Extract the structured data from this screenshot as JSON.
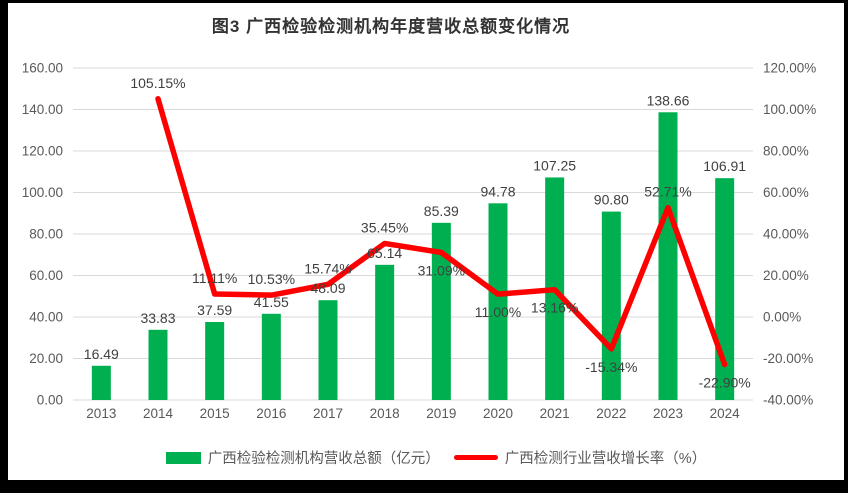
{
  "chart_data": {
    "type": "bar",
    "subtype": "combo-bar-line",
    "title": "图3 广西检验检测机构年度营收总额变化情况",
    "categories": [
      "2013",
      "2014",
      "2015",
      "2016",
      "2017",
      "2018",
      "2019",
      "2020",
      "2021",
      "2022",
      "2023",
      "2024"
    ],
    "series": [
      {
        "name": "广西检验检测机构营收总额（亿元）",
        "chart_type": "bar",
        "axis": "left",
        "color": "#00B050",
        "values": [
          16.49,
          33.83,
          37.59,
          41.55,
          48.09,
          65.14,
          85.39,
          94.78,
          107.25,
          90.8,
          138.66,
          106.91
        ],
        "labels": [
          "16.49",
          "33.83",
          "37.59",
          "41.55",
          "48.09",
          "65.14",
          "85.39",
          "94.78",
          "107.25",
          "90.80",
          "138.66",
          "106.91"
        ]
      },
      {
        "name": "广西检测行业营收增长率（%）",
        "chart_type": "line",
        "axis": "right",
        "color": "#FE0000",
        "values": [
          null,
          105.15,
          11.11,
          10.53,
          15.74,
          35.45,
          31.09,
          11.0,
          13.16,
          -15.34,
          52.71,
          -22.9
        ],
        "labels": [
          null,
          "105.15%",
          "11.11%",
          "10.53%",
          "15.74%",
          "35.45%",
          "31.09%",
          "11.00%",
          "13.16%",
          "-15.34%",
          "52.71%",
          "-22.90%"
        ],
        "label_pos": [
          null,
          "above",
          "above",
          "above",
          "above",
          "above",
          "below",
          "below",
          "below",
          "below",
          "above",
          "below"
        ]
      }
    ],
    "left_axis": {
      "min": 0,
      "max": 160,
      "step": 20,
      "tick_labels": [
        "0.00",
        "20.00",
        "40.00",
        "60.00",
        "80.00",
        "100.00",
        "120.00",
        "140.00",
        "160.00"
      ]
    },
    "right_axis": {
      "min": -40,
      "max": 120,
      "step": 20,
      "tick_labels": [
        "-40.00%",
        "-20.00%",
        "0.00%",
        "20.00%",
        "40.00%",
        "60.00%",
        "80.00%",
        "100.00%",
        "120.00%"
      ]
    },
    "grid": true,
    "legend_position": "bottom",
    "colors": {
      "grid": "#D9D9D9",
      "tick_text": "#595959",
      "label_text": "#404040",
      "title_text": "#333333",
      "frame_border": "#000000",
      "background": "#FFFFFF"
    }
  }
}
